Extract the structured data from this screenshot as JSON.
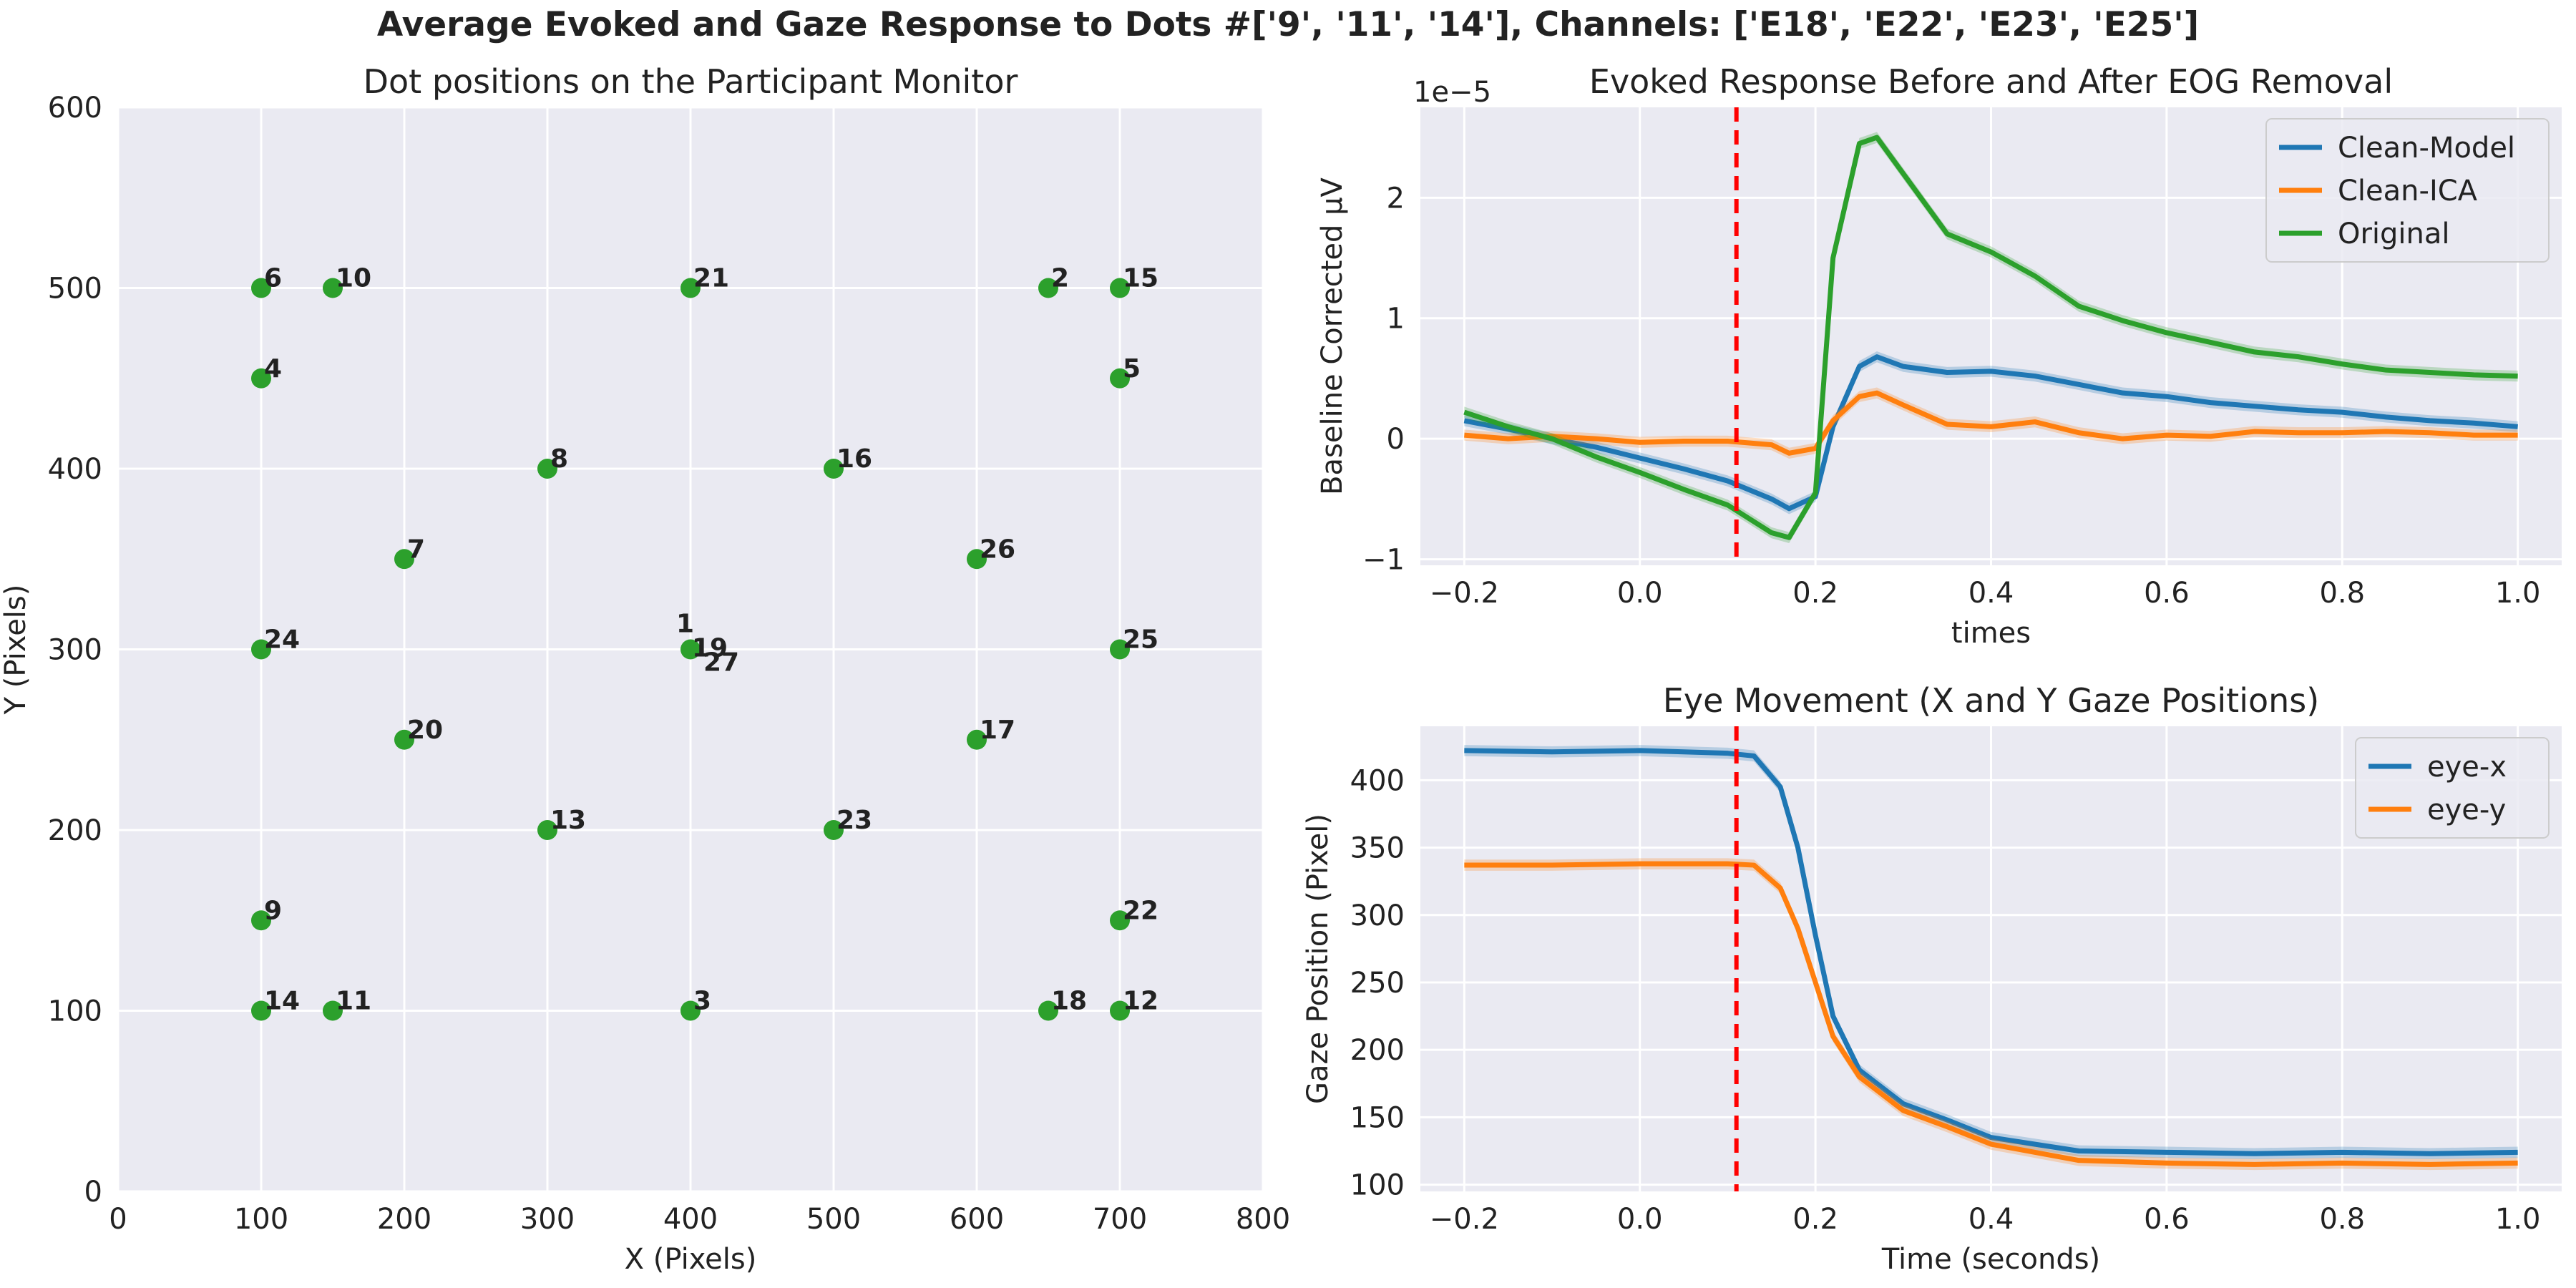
{
  "figure": {
    "suptitle": "Average Evoked and Gaze Response to Dots #['9', '11', '14'], Channels: ['E18', 'E22', 'E23', 'E25']",
    "colors": {
      "background": "#eaeaf2",
      "grid": "#ffffff",
      "dot": "#2ca02c",
      "blue": "#1f77b4",
      "orange": "#ff7f0e",
      "green": "#2ca02c",
      "vline": "#ff0000"
    }
  },
  "chart_data": [
    {
      "type": "scatter",
      "title": "Dot positions on the Participant Monitor",
      "xlabel": "X (Pixels)",
      "ylabel": "Y (Pixels)",
      "xlim": [
        0,
        800
      ],
      "ylim": [
        600,
        0
      ],
      "y_inverted": true,
      "xticks": [
        "0",
        "100",
        "200",
        "300",
        "400",
        "500",
        "600",
        "700",
        "800"
      ],
      "yticks": [
        "0",
        "100",
        "200",
        "300",
        "400",
        "500",
        "600"
      ],
      "grid": true,
      "points": [
        {
          "label": "14",
          "x": 100,
          "y": 100
        },
        {
          "label": "11",
          "x": 150,
          "y": 100
        },
        {
          "label": "3",
          "x": 400,
          "y": 100
        },
        {
          "label": "18",
          "x": 650,
          "y": 100
        },
        {
          "label": "12",
          "x": 700,
          "y": 100
        },
        {
          "label": "9",
          "x": 100,
          "y": 150
        },
        {
          "label": "22",
          "x": 700,
          "y": 150
        },
        {
          "label": "13",
          "x": 300,
          "y": 200
        },
        {
          "label": "23",
          "x": 500,
          "y": 200
        },
        {
          "label": "20",
          "x": 200,
          "y": 250
        },
        {
          "label": "17",
          "x": 600,
          "y": 250
        },
        {
          "label": "24",
          "x": 100,
          "y": 300
        },
        {
          "label": "1",
          "x": 400,
          "y": 300
        },
        {
          "label": "19",
          "x": 400,
          "y": 300
        },
        {
          "label": "27",
          "x": 400,
          "y": 300
        },
        {
          "label": "25",
          "x": 700,
          "y": 300
        },
        {
          "label": "7",
          "x": 200,
          "y": 350
        },
        {
          "label": "26",
          "x": 600,
          "y": 350
        },
        {
          "label": "8",
          "x": 300,
          "y": 400
        },
        {
          "label": "16",
          "x": 500,
          "y": 400
        },
        {
          "label": "4",
          "x": 100,
          "y": 450
        },
        {
          "label": "5",
          "x": 700,
          "y": 450
        },
        {
          "label": "6",
          "x": 100,
          "y": 500
        },
        {
          "label": "10",
          "x": 150,
          "y": 500
        },
        {
          "label": "21",
          "x": 400,
          "y": 500
        },
        {
          "label": "2",
          "x": 650,
          "y": 500
        },
        {
          "label": "15",
          "x": 700,
          "y": 500
        }
      ]
    },
    {
      "type": "line",
      "title": "Evoked Response Before and After EOG Removal",
      "xlabel": "times",
      "ylabel": "Baseline Corrected µV",
      "offset_text": "1e−5",
      "xlim": [
        -0.25,
        1.05
      ],
      "ylim": [
        -1.05,
        2.75
      ],
      "xticks": [
        "−0.2",
        "0.0",
        "0.2",
        "0.4",
        "0.6",
        "0.8",
        "1.0"
      ],
      "yticks": [
        "−1",
        "0",
        "1",
        "2"
      ],
      "legend": "top-right",
      "vline_x": 0.11,
      "grid": true,
      "x": [
        -0.2,
        -0.15,
        -0.1,
        -0.05,
        0.0,
        0.05,
        0.1,
        0.15,
        0.17,
        0.2,
        0.22,
        0.25,
        0.27,
        0.3,
        0.35,
        0.4,
        0.45,
        0.5,
        0.55,
        0.6,
        0.65,
        0.7,
        0.75,
        0.8,
        0.85,
        0.9,
        0.95,
        1.0
      ],
      "series": [
        {
          "name": "Clean-Model",
          "color": "#1f77b4",
          "values": [
            0.15,
            0.08,
            0.0,
            -0.07,
            -0.16,
            -0.25,
            -0.35,
            -0.5,
            -0.58,
            -0.48,
            0.1,
            0.6,
            0.68,
            0.6,
            0.55,
            0.56,
            0.52,
            0.45,
            0.38,
            0.35,
            0.3,
            0.27,
            0.24,
            0.22,
            0.18,
            0.15,
            0.13,
            0.1
          ]
        },
        {
          "name": "Clean-ICA",
          "color": "#ff7f0e",
          "values": [
            0.03,
            0.0,
            0.02,
            0.0,
            -0.03,
            -0.02,
            -0.02,
            -0.05,
            -0.12,
            -0.08,
            0.15,
            0.35,
            0.38,
            0.28,
            0.12,
            0.1,
            0.14,
            0.05,
            0.0,
            0.03,
            0.02,
            0.06,
            0.05,
            0.05,
            0.06,
            0.05,
            0.03,
            0.03
          ]
        },
        {
          "name": "Original",
          "color": "#2ca02c",
          "values": [
            0.22,
            0.1,
            0.0,
            -0.15,
            -0.28,
            -0.42,
            -0.55,
            -0.78,
            -0.82,
            -0.45,
            1.5,
            2.45,
            2.5,
            2.2,
            1.7,
            1.55,
            1.35,
            1.1,
            0.98,
            0.88,
            0.8,
            0.72,
            0.68,
            0.62,
            0.57,
            0.55,
            0.53,
            0.52
          ]
        }
      ]
    },
    {
      "type": "line",
      "title": "Eye Movement (X and Y Gaze Positions)",
      "xlabel": "Time (seconds)",
      "ylabel": "Gaze Position (Pixel)",
      "xlim": [
        -0.25,
        1.05
      ],
      "ylim": [
        95,
        440
      ],
      "xticks": [
        "−0.2",
        "0.0",
        "0.2",
        "0.4",
        "0.6",
        "0.8",
        "1.0"
      ],
      "yticks": [
        "100",
        "150",
        "200",
        "250",
        "300",
        "350",
        "400"
      ],
      "legend": "top-right",
      "vline_x": 0.11,
      "grid": true,
      "x": [
        -0.2,
        -0.1,
        0.0,
        0.1,
        0.13,
        0.16,
        0.18,
        0.2,
        0.22,
        0.25,
        0.3,
        0.35,
        0.4,
        0.5,
        0.6,
        0.7,
        0.8,
        0.9,
        1.0
      ],
      "series": [
        {
          "name": "eye-x",
          "color": "#1f77b4",
          "values": [
            422,
            421,
            422,
            420,
            418,
            395,
            350,
            285,
            225,
            185,
            160,
            148,
            135,
            125,
            124,
            123,
            124,
            123,
            124
          ]
        },
        {
          "name": "eye-y",
          "color": "#ff7f0e",
          "values": [
            337,
            337,
            338,
            338,
            337,
            320,
            290,
            250,
            210,
            180,
            155,
            143,
            130,
            118,
            116,
            115,
            116,
            115,
            116
          ]
        }
      ]
    }
  ]
}
